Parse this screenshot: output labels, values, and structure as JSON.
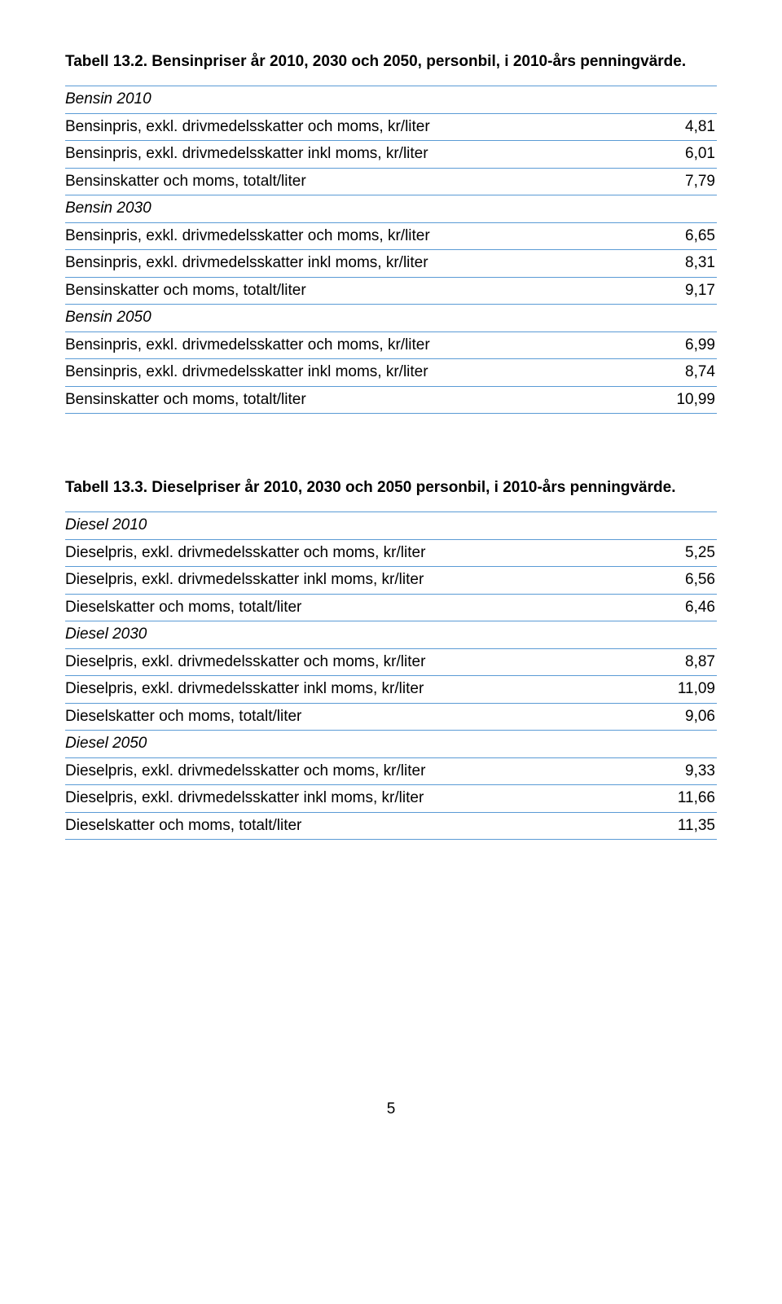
{
  "table1": {
    "title": "Tabell 13.2. Bensinpriser år 2010, 2030 och 2050, personbil, i 2010-års penningvärde.",
    "rows": [
      {
        "label": "Bensin 2010",
        "value": "",
        "italic": true
      },
      {
        "label": "Bensinpris, exkl. drivmedelsskatter och moms, kr/liter",
        "value": "4,81"
      },
      {
        "label": "Bensinpris, exkl. drivmedelsskatter inkl moms, kr/liter",
        "value": "6,01"
      },
      {
        "label": "Bensinskatter och moms, totalt/liter",
        "value": "7,79"
      },
      {
        "label": "Bensin 2030",
        "value": "",
        "italic": true
      },
      {
        "label": "Bensinpris, exkl. drivmedelsskatter och moms, kr/liter",
        "value": "6,65"
      },
      {
        "label": "Bensinpris, exkl. drivmedelsskatter inkl moms, kr/liter",
        "value": "8,31"
      },
      {
        "label": "Bensinskatter och moms, totalt/liter",
        "value": "9,17"
      },
      {
        "label": "Bensin 2050",
        "value": "",
        "italic": true
      },
      {
        "label": "Bensinpris, exkl. drivmedelsskatter och moms, kr/liter",
        "value": "6,99"
      },
      {
        "label": "Bensinpris, exkl. drivmedelsskatter inkl moms, kr/liter",
        "value": "8,74"
      },
      {
        "label": "Bensinskatter och moms, totalt/liter",
        "value": "10,99"
      }
    ]
  },
  "table2": {
    "title": "Tabell 13.3. Dieselpriser år 2010, 2030 och 2050 personbil, i 2010-års penningvärde.",
    "rows": [
      {
        "label": "Diesel 2010",
        "value": "",
        "italic": true
      },
      {
        "label": "Dieselpris, exkl. drivmedelsskatter och moms, kr/liter",
        "value": "5,25"
      },
      {
        "label": "Dieselpris, exkl. drivmedelsskatter inkl moms, kr/liter",
        "value": "6,56"
      },
      {
        "label": "Dieselskatter och moms, totalt/liter",
        "value": "6,46"
      },
      {
        "label": "Diesel 2030",
        "value": "",
        "italic": true
      },
      {
        "label": "Dieselpris, exkl. drivmedelsskatter och moms, kr/liter",
        "value": "8,87"
      },
      {
        "label": "Dieselpris, exkl. drivmedelsskatter inkl moms, kr/liter",
        "value": "11,09"
      },
      {
        "label": "Dieselskatter och moms, totalt/liter",
        "value": "9,06"
      },
      {
        "label": "Diesel 2050",
        "value": "",
        "italic": true
      },
      {
        "label": "Dieselpris, exkl. drivmedelsskatter och moms, kr/liter",
        "value": "9,33"
      },
      {
        "label": "Dieselpris, exkl. drivmedelsskatter inkl moms, kr/liter",
        "value": "11,66"
      },
      {
        "label": "Dieselskatter och moms, totalt/liter",
        "value": "11,35"
      }
    ]
  },
  "page_number": "5",
  "colors": {
    "border": "#5b9bd5",
    "text": "#000000",
    "background": "#ffffff"
  }
}
